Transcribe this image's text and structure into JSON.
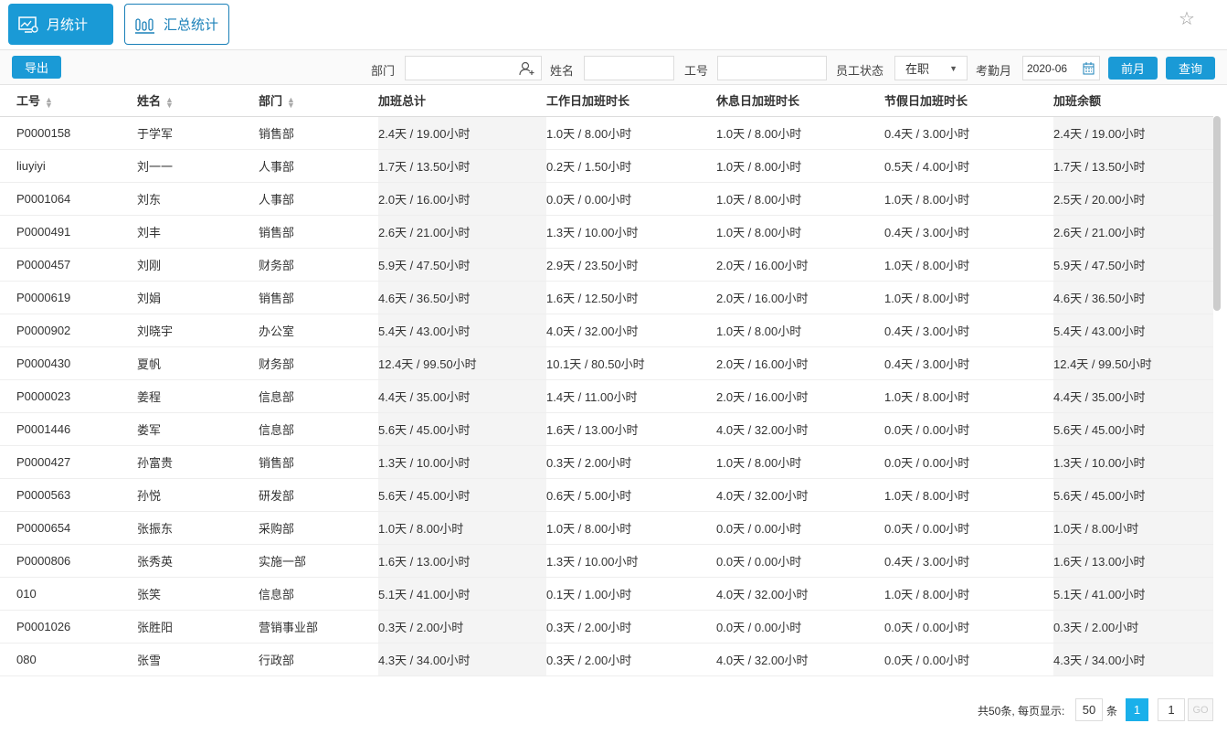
{
  "tabs": [
    {
      "label": "月统计",
      "icon": "monitor-chart-icon",
      "active": true
    },
    {
      "label": "汇总统计",
      "icon": "bar-chart-icon",
      "active": false
    }
  ],
  "toolbar": {
    "export": "导出",
    "dept_label": "部门",
    "dept_value": "",
    "name_label": "姓名",
    "name_value": "",
    "id_label": "工号",
    "id_value": "",
    "status_label": "员工状态",
    "status_value": "在职",
    "month_label": "考勤月",
    "month_value": "2020-06",
    "prev_month": "前月",
    "query": "查询"
  },
  "columns": [
    "工号",
    "姓名",
    "部门",
    "加班总计",
    "工作日加班时长",
    "休息日加班时长",
    "节假日加班时长",
    "加班余额"
  ],
  "rows": [
    [
      "P0000158",
      "于学军",
      "销售部",
      "2.4天 / 19.00小时",
      "1.0天 / 8.00小时",
      "1.0天 / 8.00小时",
      "0.4天 / 3.00小时",
      "2.4天 / 19.00小时"
    ],
    [
      "liuyiyi",
      "刘一一",
      "人事部",
      "1.7天 / 13.50小时",
      "0.2天 / 1.50小时",
      "1.0天 / 8.00小时",
      "0.5天 / 4.00小时",
      "1.7天 / 13.50小时"
    ],
    [
      "P0001064",
      "刘东",
      "人事部",
      "2.0天 / 16.00小时",
      "0.0天 / 0.00小时",
      "1.0天 / 8.00小时",
      "1.0天 / 8.00小时",
      "2.5天 / 20.00小时"
    ],
    [
      "P0000491",
      "刘丰",
      "销售部",
      "2.6天 / 21.00小时",
      "1.3天 / 10.00小时",
      "1.0天 / 8.00小时",
      "0.4天 / 3.00小时",
      "2.6天 / 21.00小时"
    ],
    [
      "P0000457",
      "刘刚",
      "财务部",
      "5.9天 / 47.50小时",
      "2.9天 / 23.50小时",
      "2.0天 / 16.00小时",
      "1.0天 / 8.00小时",
      "5.9天 / 47.50小时"
    ],
    [
      "P0000619",
      "刘娟",
      "销售部",
      "4.6天 / 36.50小时",
      "1.6天 / 12.50小时",
      "2.0天 / 16.00小时",
      "1.0天 / 8.00小时",
      "4.6天 / 36.50小时"
    ],
    [
      "P0000902",
      "刘晓宇",
      "办公室",
      "5.4天 / 43.00小时",
      "4.0天 / 32.00小时",
      "1.0天 / 8.00小时",
      "0.4天 / 3.00小时",
      "5.4天 / 43.00小时"
    ],
    [
      "P0000430",
      "夏帆",
      "财务部",
      "12.4天 / 99.50小时",
      "10.1天 / 80.50小时",
      "2.0天 / 16.00小时",
      "0.4天 / 3.00小时",
      "12.4天 / 99.50小时"
    ],
    [
      "P0000023",
      "姜程",
      "信息部",
      "4.4天 / 35.00小时",
      "1.4天 / 11.00小时",
      "2.0天 / 16.00小时",
      "1.0天 / 8.00小时",
      "4.4天 / 35.00小时"
    ],
    [
      "P0001446",
      "娄军",
      "信息部",
      "5.6天 / 45.00小时",
      "1.6天 / 13.00小时",
      "4.0天 / 32.00小时",
      "0.0天 / 0.00小时",
      "5.6天 / 45.00小时"
    ],
    [
      "P0000427",
      "孙富贵",
      "销售部",
      "1.3天 / 10.00小时",
      "0.3天 / 2.00小时",
      "1.0天 / 8.00小时",
      "0.0天 / 0.00小时",
      "1.3天 / 10.00小时"
    ],
    [
      "P0000563",
      "孙悦",
      "研发部",
      "5.6天 / 45.00小时",
      "0.6天 / 5.00小时",
      "4.0天 / 32.00小时",
      "1.0天 / 8.00小时",
      "5.6天 / 45.00小时"
    ],
    [
      "P0000654",
      "张振东",
      "采购部",
      "1.0天 / 8.00小时",
      "1.0天 / 8.00小时",
      "0.0天 / 0.00小时",
      "0.0天 / 0.00小时",
      "1.0天 / 8.00小时"
    ],
    [
      "P0000806",
      "张秀英",
      "实施一部",
      "1.6天 / 13.00小时",
      "1.3天 / 10.00小时",
      "0.0天 / 0.00小时",
      "0.4天 / 3.00小时",
      "1.6天 / 13.00小时"
    ],
    [
      "010",
      "张笑",
      "信息部",
      "5.1天 / 41.00小时",
      "0.1天 / 1.00小时",
      "4.0天 / 32.00小时",
      "1.0天 / 8.00小时",
      "5.1天 / 41.00小时"
    ],
    [
      "P0001026",
      "张胜阳",
      "营销事业部",
      "0.3天 / 2.00小时",
      "0.3天 / 2.00小时",
      "0.0天 / 0.00小时",
      "0.0天 / 0.00小时",
      "0.3天 / 2.00小时"
    ],
    [
      "080",
      "张雪",
      "行政部",
      "4.3天 / 34.00小时",
      "0.3天 / 2.00小时",
      "4.0天 / 32.00小时",
      "0.0天 / 0.00小时",
      "4.3天 / 34.00小时"
    ]
  ],
  "pagination": {
    "summary": "共50条, 每页显示:",
    "page_size": "50",
    "unit": "条",
    "current_page": "1",
    "goto_value": "1",
    "go": "GO"
  },
  "colors": {
    "accent": "#1a9ad6"
  }
}
